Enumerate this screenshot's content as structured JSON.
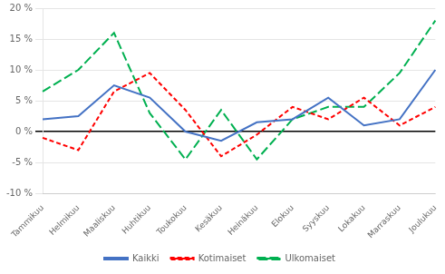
{
  "chart_data": {
    "type": "line",
    "categories": [
      "Tammikuu",
      "Helmikuu",
      "Maaliskuu",
      "Huhtikuu",
      "Toukokuu",
      "Kesäkuu",
      "Heinäkuu",
      "Elokuu",
      "Syyskuu",
      "Lokakuu",
      "Marraskuu",
      "Joulukuu"
    ],
    "series": [
      {
        "name": "Kaikki",
        "color": "#4472c4",
        "line_style": "solid",
        "values": [
          2.0,
          2.5,
          7.5,
          5.5,
          0.0,
          -1.5,
          1.5,
          2.0,
          5.5,
          1.0,
          2.0,
          10.0
        ]
      },
      {
        "name": "Kotimaiset",
        "color": "#ff0000",
        "line_style": "dashed",
        "values": [
          -1.0,
          -3.0,
          6.5,
          9.5,
          3.5,
          -4.0,
          -0.5,
          4.0,
          2.0,
          5.5,
          1.0,
          4.0
        ]
      },
      {
        "name": "Ulkomaiset",
        "color": "#00b050",
        "line_style": "longdash",
        "values": [
          6.5,
          10.0,
          16.0,
          3.0,
          -4.5,
          3.5,
          -4.5,
          2.0,
          4.0,
          4.0,
          9.5,
          18.0
        ]
      }
    ],
    "ylim": [
      -10,
      20
    ],
    "yticks": [
      {
        "value": -10,
        "label": "-10 %"
      },
      {
        "value": -5,
        "label": "-5 %"
      },
      {
        "value": 0,
        "label": "0 %"
      },
      {
        "value": 5,
        "label": "5 %"
      },
      {
        "value": 10,
        "label": "10 %"
      },
      {
        "value": 15,
        "label": "15 %"
      },
      {
        "value": 20,
        "label": "20 %"
      }
    ],
    "grid": true,
    "legend": "bottom"
  }
}
